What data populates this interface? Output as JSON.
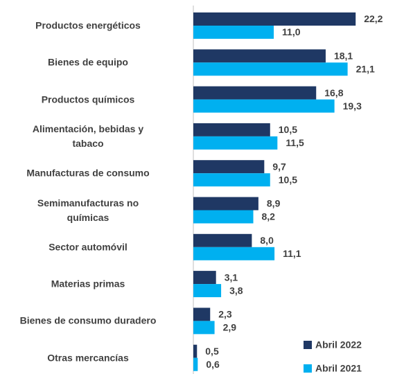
{
  "chart_data": {
    "type": "bar",
    "orientation": "horizontal",
    "categories": [
      "Productos energéticos",
      "Bienes de equipo",
      "Productos químicos",
      "Alimentación, bebidas y\ntabaco",
      "Manufacturas de consumo",
      "Semimanufacturas no\nquímicas",
      "Sector automóvil",
      "Materias primas",
      "Bienes de consumo duradero",
      "Otras mercancías"
    ],
    "series": [
      {
        "name": "Abril 2022",
        "color": "#1f3864",
        "values": [
          22.2,
          18.1,
          16.8,
          10.5,
          9.7,
          8.9,
          8.0,
          3.1,
          2.3,
          0.5
        ],
        "value_labels": [
          "22,2",
          "18,1",
          "16,8",
          "10,5",
          "9,7",
          "8,9",
          "8,0",
          "3,1",
          "2,3",
          "0,5"
        ]
      },
      {
        "name": "Abril 2021",
        "color": "#00b0f0",
        "values": [
          11.0,
          21.1,
          19.3,
          11.5,
          10.5,
          8.2,
          11.1,
          3.8,
          2.9,
          0.6
        ],
        "value_labels": [
          "11,0",
          "21,1",
          "19,3",
          "11,5",
          "10,5",
          "8,2",
          "11,1",
          "3,8",
          "2,9",
          "0,6"
        ]
      }
    ],
    "legend": "bottom-right"
  }
}
